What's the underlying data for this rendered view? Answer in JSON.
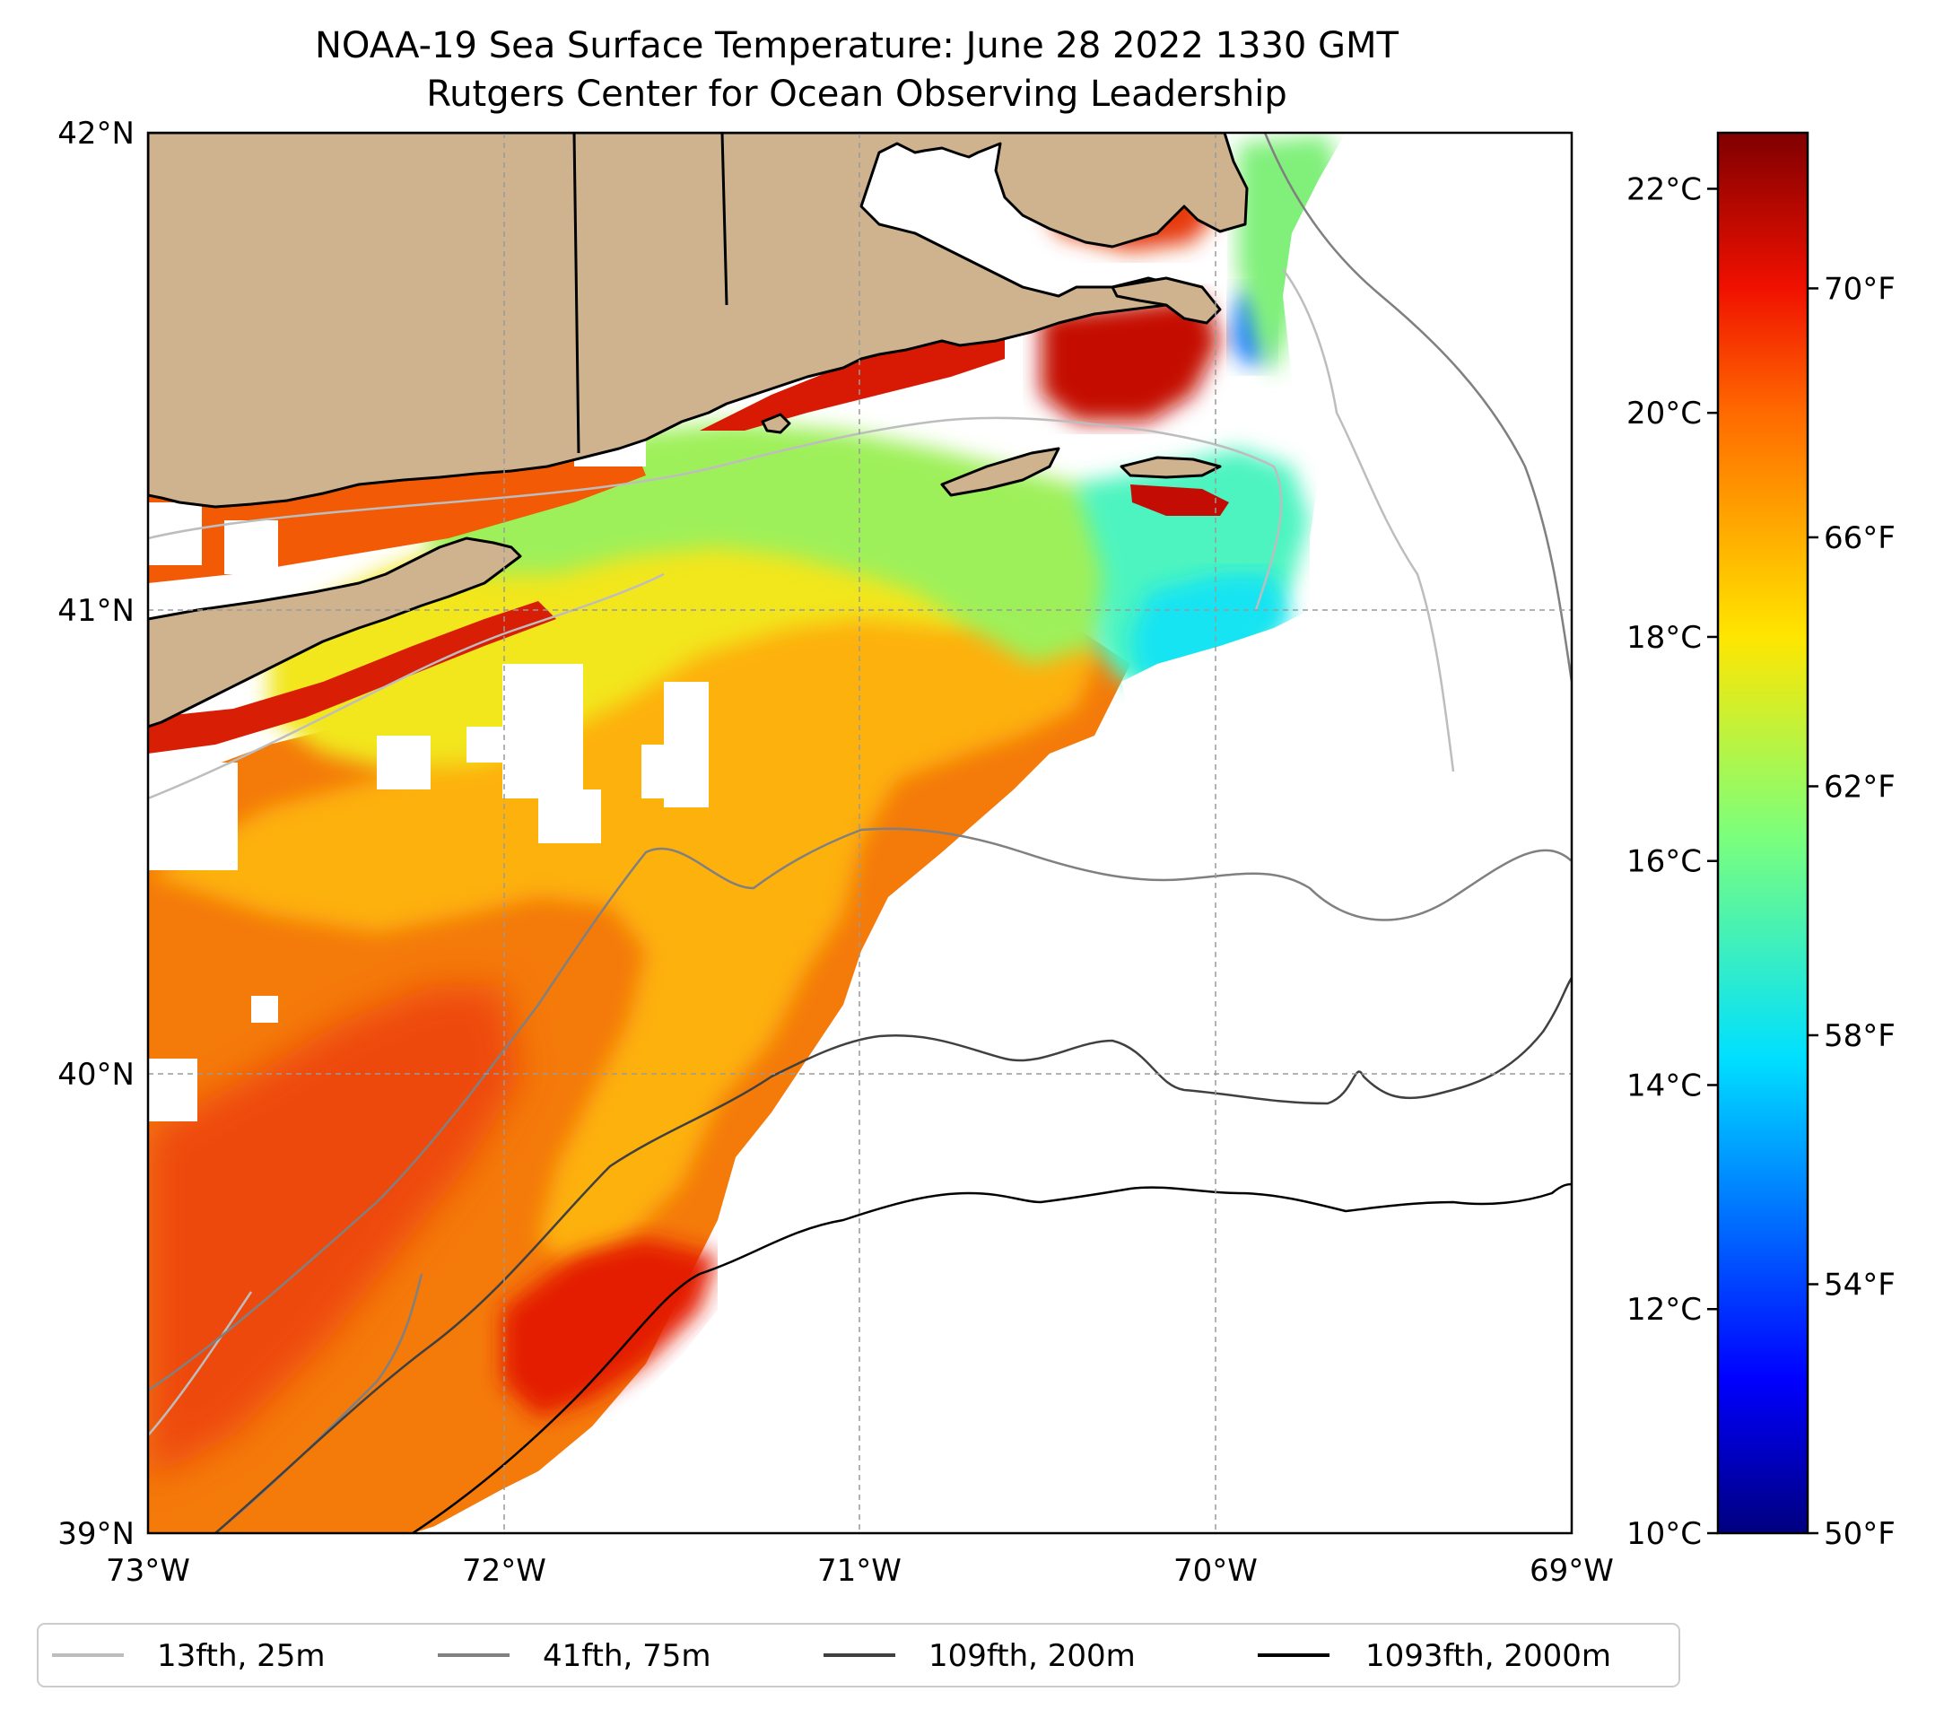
{
  "title": {
    "line1": "NOAA-19 Sea Surface Temperature: June 28 2022 1330 GMT",
    "line2": "Rutgers Center for Ocean Observing Leadership"
  },
  "map": {
    "lon_range": [
      -73,
      -69
    ],
    "lat_range": [
      39,
      42
    ],
    "lon_ticks": [
      {
        "value": -73,
        "label": "73°W"
      },
      {
        "value": -72,
        "label": "72°W"
      },
      {
        "value": -71,
        "label": "71°W"
      },
      {
        "value": -70,
        "label": "70°W"
      },
      {
        "value": -69,
        "label": "69°W"
      }
    ],
    "lat_ticks": [
      {
        "value": 42,
        "label": "42°N"
      },
      {
        "value": 41,
        "label": "41°N"
      },
      {
        "value": 40,
        "label": "40°N"
      },
      {
        "value": 39,
        "label": "39°N"
      }
    ],
    "grid": true,
    "land_color": "#cfb38e",
    "coast_color": "#000000",
    "colormap": "jet"
  },
  "colorbar": {
    "range_c": [
      10,
      22.5
    ],
    "celsius_ticks": [
      {
        "value": 10,
        "label": "10°C"
      },
      {
        "value": 12,
        "label": "12°C"
      },
      {
        "value": 14,
        "label": "14°C"
      },
      {
        "value": 16,
        "label": "16°C"
      },
      {
        "value": 18,
        "label": "18°C"
      },
      {
        "value": 20,
        "label": "20°C"
      },
      {
        "value": 22,
        "label": "22°C"
      }
    ],
    "fahrenheit_ticks": [
      {
        "value": 50,
        "label": "50°F"
      },
      {
        "value": 54,
        "label": "54°F"
      },
      {
        "value": 58,
        "label": "58°F"
      },
      {
        "value": 62,
        "label": "62°F"
      },
      {
        "value": 66,
        "label": "66°F"
      },
      {
        "value": 70,
        "label": "70°F"
      }
    ]
  },
  "legend": {
    "placement": "bottom",
    "items": [
      {
        "label": "13fth, 25m",
        "color": "#bdbdbd"
      },
      {
        "label": "41fth, 75m",
        "color": "#808080"
      },
      {
        "label": "109fth, 200m",
        "color": "#404040"
      },
      {
        "label": "1093fth, 2000m",
        "color": "#000000"
      }
    ]
  }
}
